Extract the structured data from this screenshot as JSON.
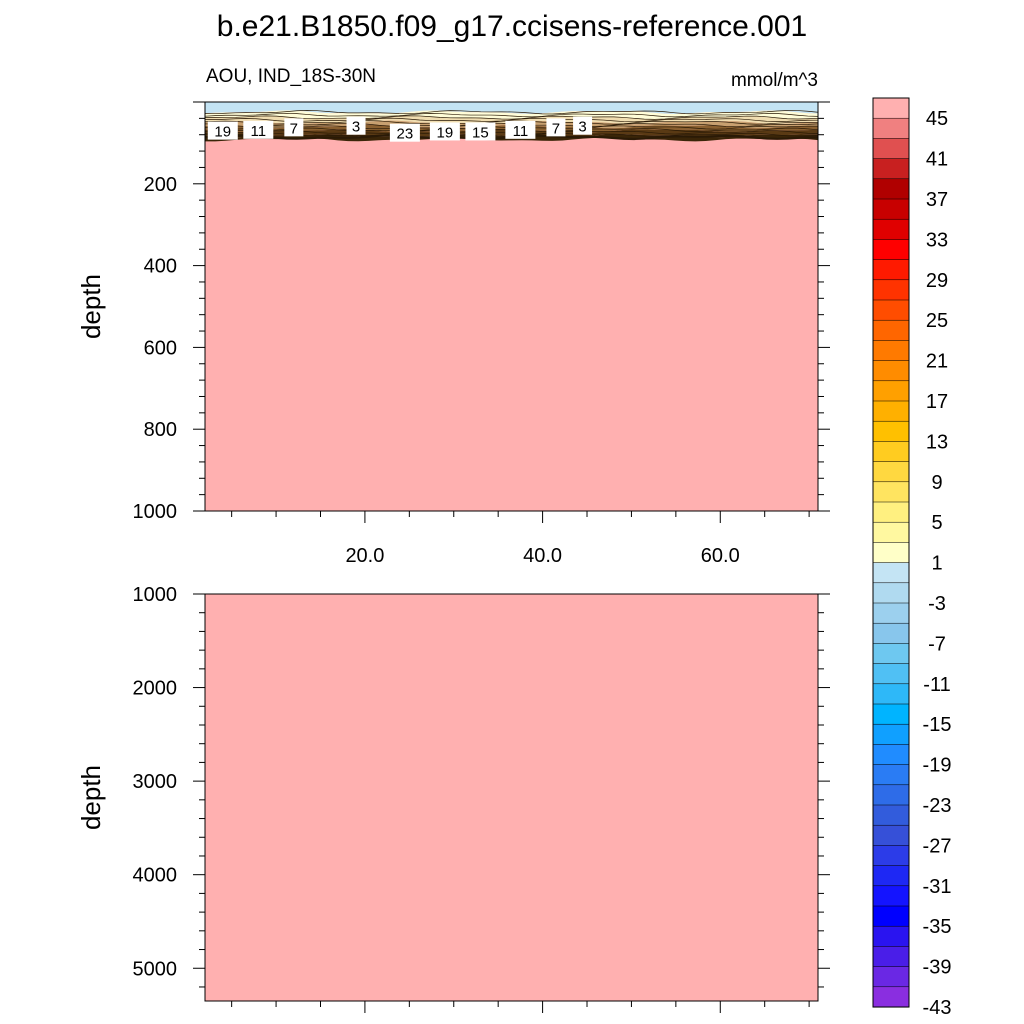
{
  "chart_data": {
    "type": "heatmap",
    "title": "b.e21.B1850.f09_g17.ccisens-reference.001",
    "subtitle_left": "AOU, IND_18S-30N",
    "subtitle_right": "mmol/m^3",
    "colors": {
      "fill_background": "#ffb0b0",
      "surface_band": "#c4e4f4",
      "dark_band": "#3a2508"
    },
    "panels": [
      {
        "ylabel": "depth",
        "xlim": [
          2,
          71
        ],
        "ylim": [
          1000,
          0
        ],
        "yticks": [
          200,
          400,
          600,
          800,
          1000
        ],
        "ytick_labels": [
          "200",
          "400",
          "600",
          "800",
          "1000"
        ],
        "xticks": [
          20,
          40,
          60
        ],
        "xtick_labels": [
          "20.0",
          "40.0",
          "60.0"
        ]
      },
      {
        "ylabel": "depth",
        "xlim": [
          2,
          71
        ],
        "ylim": [
          5350,
          1000
        ],
        "yticks": [
          1000,
          2000,
          3000,
          4000,
          5000
        ],
        "ytick_labels": [
          "1000",
          "2000",
          "3000",
          "4000",
          "5000"
        ],
        "xticks": [
          20,
          40,
          60
        ],
        "xtick_labels": []
      }
    ],
    "contour_labels": [
      {
        "text": "19",
        "x": 4.0,
        "depth": 70
      },
      {
        "text": "11",
        "x": 8.0,
        "depth": 68
      },
      {
        "text": "7",
        "x": 12.0,
        "depth": 62
      },
      {
        "text": "3",
        "x": 19.0,
        "depth": 58
      },
      {
        "text": "23",
        "x": 24.5,
        "depth": 75
      },
      {
        "text": "19",
        "x": 29.0,
        "depth": 72
      },
      {
        "text": "15",
        "x": 33.0,
        "depth": 72
      },
      {
        "text": "11",
        "x": 37.5,
        "depth": 68
      },
      {
        "text": "7",
        "x": 41.5,
        "depth": 62
      },
      {
        "text": "3",
        "x": 44.5,
        "depth": 58
      }
    ],
    "colorbar": {
      "labels": [
        "45",
        "41",
        "37",
        "33",
        "29",
        "25",
        "21",
        "17",
        "13",
        "9",
        "5",
        "1",
        "-3",
        "-7",
        "-11",
        "-15",
        "-19",
        "-23",
        "-27",
        "-31",
        "-35",
        "-39",
        "-43"
      ],
      "colors": [
        "#ffb0b0",
        "#f08080",
        "#e05050",
        "#c82020",
        "#b00000",
        "#c80000",
        "#e00000",
        "#ff0000",
        "#ff1a00",
        "#ff3300",
        "#ff4d00",
        "#ff6600",
        "#ff7a00",
        "#ff8c00",
        "#ffa000",
        "#ffb000",
        "#ffc000",
        "#ffcc20",
        "#ffd840",
        "#ffe460",
        "#fff080",
        "#fff8a0",
        "#ffffc8",
        "#c4e4f4",
        "#b0daf0",
        "#9cd0ee",
        "#88c6ec",
        "#6ec8f0",
        "#50c0f4",
        "#2eb8f8",
        "#00b4ff",
        "#10a0ff",
        "#208cff",
        "#2a7cf4",
        "#2e6ce8",
        "#325cdc",
        "#3650d8",
        "#2c3ce8",
        "#1e28f4",
        "#1414ff",
        "#0000ff",
        "#2a14f0",
        "#4a1ee8",
        "#6a28e4",
        "#8a2ee0"
      ]
    }
  }
}
